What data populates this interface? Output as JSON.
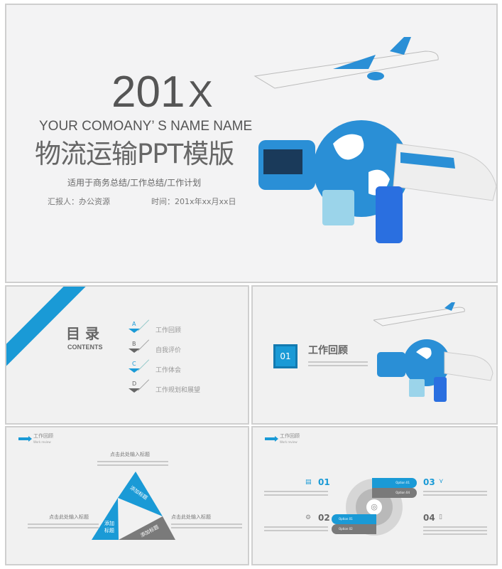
{
  "colors": {
    "accent": "#1a9ad6",
    "gray": "#777777",
    "background": "#f1f1f1"
  },
  "cover": {
    "year": "201",
    "year_overlay": "X",
    "company": "YOUR COMOANY’ S NAME NAME",
    "title": "物流运输PPT模版",
    "subtitle": "适用于商务总结/工作总结/工作计划",
    "reporter": "汇报人：办公资源",
    "time": "时间：201x年xx月xx日",
    "illustration": "airplane-globe-bus-train-luggage"
  },
  "contents": {
    "title": "目 录",
    "subtitle": "CONTENTS",
    "items": [
      {
        "letter": "A",
        "label": "工作回顾",
        "color": "#1a9ad6"
      },
      {
        "letter": "B",
        "label": "自我评价",
        "color": "#666666"
      },
      {
        "letter": "C",
        "label": "工作体会",
        "color": "#1a9ad6"
      },
      {
        "letter": "D",
        "label": "工作规划和展望",
        "color": "#666666"
      }
    ]
  },
  "section": {
    "number": "01",
    "title": "工作回顾"
  },
  "triangle_slide": {
    "header": "工作回顾",
    "header_en": "Work review",
    "top_title": "点击此处输入标题",
    "left_title": "点击此处输入标题",
    "right_title": "点击此处输入标题",
    "tri_top": "添加标题",
    "tri_left": "添加标题",
    "tri_right": "添加标题"
  },
  "options_slide": {
    "header": "工作回顾",
    "header_en": "Work review",
    "n1": "01",
    "n2": "02",
    "n3": "03",
    "n4": "04",
    "opt_tr1": "Option 01",
    "opt_tr2": "Option 04",
    "opt_bl1": "Option 01",
    "opt_bl2": "Option 02"
  }
}
